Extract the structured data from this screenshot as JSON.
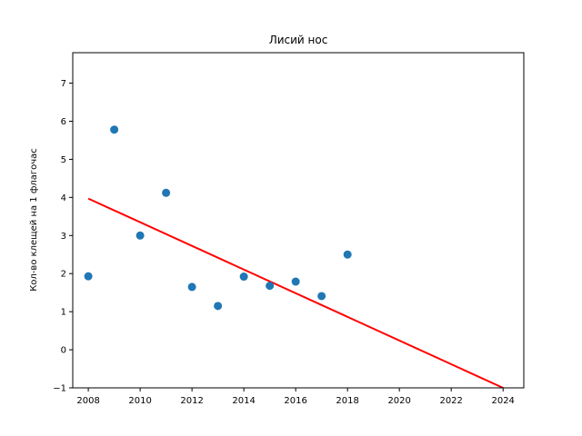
{
  "chart_data": {
    "type": "scatter",
    "title": "Лисий нос",
    "xlabel": "",
    "ylabel": "Кол-во клещей на 1 флагочас",
    "xlim": [
      2007.4,
      2024.8
    ],
    "ylim": [
      -1,
      7.8
    ],
    "xticks": [
      2008,
      2010,
      2012,
      2014,
      2016,
      2018,
      2020,
      2022,
      2024
    ],
    "yticks": [
      -1,
      0,
      1,
      2,
      3,
      4,
      5,
      6,
      7
    ],
    "grid": false,
    "series": [
      {
        "kind": "points",
        "color": "#1f77b4",
        "x": [
          2008,
          2009,
          2010,
          2011,
          2012,
          2013,
          2014,
          2015,
          2016,
          2017,
          2018
        ],
        "y": [
          1.93,
          5.78,
          3.0,
          4.12,
          1.65,
          1.15,
          1.92,
          1.68,
          1.79,
          1.41,
          2.5
        ]
      },
      {
        "kind": "trend-line",
        "color": "#ff0000",
        "x": [
          2008,
          2024
        ],
        "y": [
          3.97,
          -1.0
        ]
      }
    ]
  }
}
